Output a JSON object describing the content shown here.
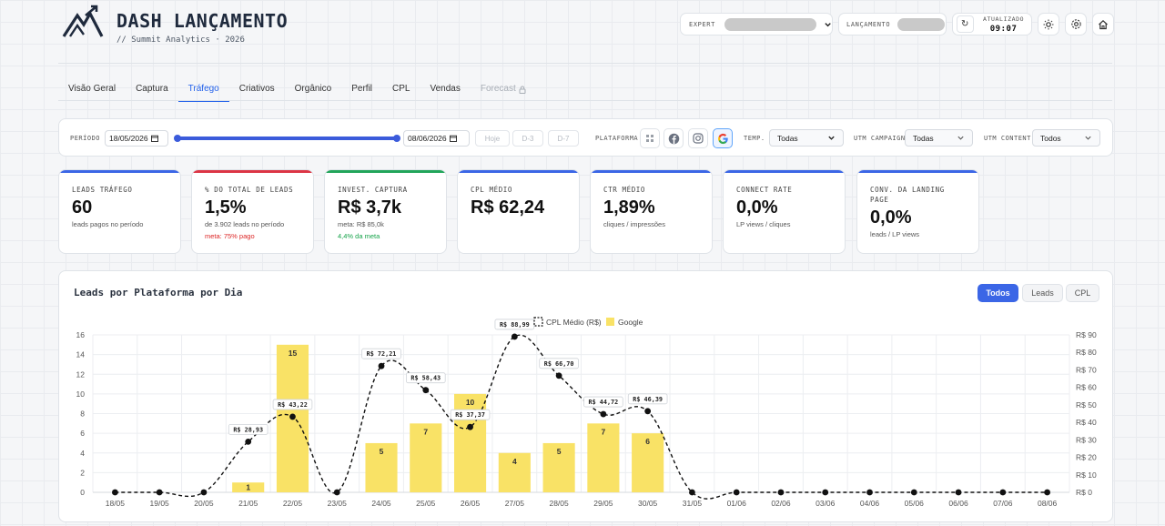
{
  "brand": {
    "title": "DASH LANÇAMENTO",
    "subtitle": "// Summit Analytics · 2026"
  },
  "header": {
    "expert_label": "EXPERT",
    "lancamento_label": "LANÇAMENTO",
    "updated_label": "ATUALIZADO",
    "updated_time": "09:07",
    "refresh_icon": "↻"
  },
  "tabs": [
    {
      "label": "Visão Geral",
      "state": "normal"
    },
    {
      "label": "Captura",
      "state": "normal"
    },
    {
      "label": "Tráfego",
      "state": "active"
    },
    {
      "label": "Criativos",
      "state": "normal"
    },
    {
      "label": "Orgânico",
      "state": "normal"
    },
    {
      "label": "Perfil",
      "state": "normal"
    },
    {
      "label": "CPL",
      "state": "normal"
    },
    {
      "label": "Vendas",
      "state": "normal"
    },
    {
      "label": "Forecast",
      "state": "disabled"
    }
  ],
  "filters": {
    "period_label": "PERÍODO",
    "date_start": "18/05/2026",
    "date_end": "08/06/2026",
    "quick": [
      "Hoje",
      "D-3",
      "D-7"
    ],
    "platform_label": "PLATAFORMA",
    "temp_label": "TEMP.",
    "temp_value": "Todas",
    "utm_campaign_label": "UTM CAMPAIGN",
    "utm_campaign_value": "Todas",
    "utm_content_label": "UTM CONTENT",
    "utm_content_value": "Todos"
  },
  "kpis": [
    {
      "label": "LEADS TRÁFEGO",
      "value": "60",
      "sub": "leads pagos no período",
      "note": "",
      "color": "#3b66e6",
      "note_color": ""
    },
    {
      "label": "% DO TOTAL DE LEADS",
      "value": "1,5%",
      "sub": "de 3.902 leads no período",
      "note": "meta: 75% pago",
      "color": "#dc3545",
      "note_color": "#dc2626"
    },
    {
      "label": "INVEST. CAPTURA",
      "value": "R$ 3,7k",
      "sub": "meta: R$ 85,0k",
      "note": "4,4% da meta",
      "color": "#22a55a",
      "note_color": "#16a34a"
    },
    {
      "label": "CPL MÉDIO",
      "value": "R$ 62,24",
      "sub": "",
      "note": "",
      "color": "#3b66e6",
      "note_color": ""
    },
    {
      "label": "CTR MÉDIO",
      "value": "1,89%",
      "sub": "cliques / impressões",
      "note": "",
      "color": "#3b66e6",
      "note_color": ""
    },
    {
      "label": "CONNECT RATE",
      "value": "0,0%",
      "sub": "LP views / cliques",
      "note": "",
      "color": "#3b66e6",
      "note_color": ""
    },
    {
      "label": "CONV. DA LANDING PAGE",
      "value": "0,0%",
      "sub": "leads / LP views",
      "note": "",
      "color": "#3b66e6",
      "note_color": ""
    }
  ],
  "chart_panel": {
    "title": "Leads por Plataforma por Dia",
    "toggles": [
      "Todos",
      "Leads",
      "CPL"
    ],
    "active_toggle": "Todos"
  },
  "chart_data": {
    "type": "bar",
    "categories": [
      "18/05",
      "19/05",
      "20/05",
      "21/05",
      "22/05",
      "23/05",
      "24/05",
      "25/05",
      "26/05",
      "27/05",
      "28/05",
      "29/05",
      "30/05",
      "31/05",
      "01/06",
      "02/06",
      "03/06",
      "04/06",
      "05/06",
      "06/06",
      "07/06",
      "08/06"
    ],
    "series": [
      {
        "name": "Google",
        "type": "bar",
        "axis": "left",
        "color": "#f9e266",
        "values": [
          0,
          0,
          0,
          1,
          15,
          0,
          5,
          7,
          10,
          4,
          5,
          7,
          6,
          0,
          0,
          0,
          0,
          0,
          0,
          0,
          0,
          0
        ]
      },
      {
        "name": "CPL Médio (R$)",
        "type": "line",
        "axis": "right",
        "color": "#111111",
        "style": "dashed",
        "values": [
          0,
          0,
          0,
          28.93,
          43.22,
          0,
          72.21,
          58.43,
          37.37,
          88.99,
          66.7,
          44.72,
          46.39,
          0,
          0,
          0,
          0,
          0,
          0,
          0,
          0,
          0
        ]
      }
    ],
    "line_labels": [
      null,
      null,
      null,
      "R$ 28,93",
      "R$ 43,22",
      null,
      "R$ 72,21",
      "R$ 58,43",
      "R$ 37,37",
      "R$ 88,99",
      "R$ 66,70",
      "R$ 44,72",
      "R$ 46,39",
      null,
      null,
      null,
      null,
      null,
      null,
      null,
      null,
      null
    ],
    "bar_labels": [
      null,
      null,
      null,
      "1",
      "15",
      null,
      "5",
      "7",
      "10",
      "4",
      "5",
      "7",
      "6",
      null,
      null,
      null,
      null,
      null,
      null,
      null,
      null,
      null
    ],
    "y_left": {
      "min": 0,
      "max": 16,
      "ticks": [
        "0",
        "2",
        "4",
        "6",
        "8",
        "10",
        "12",
        "14",
        "16"
      ]
    },
    "y_right": {
      "min": 0,
      "max": 90,
      "ticks": [
        "R$ 0",
        "R$ 10",
        "R$ 20",
        "R$ 30",
        "R$ 40",
        "R$ 50",
        "R$ 60",
        "R$ 70",
        "R$ 80",
        "R$ 90"
      ]
    },
    "legend_position": "top-center",
    "grid": true
  }
}
